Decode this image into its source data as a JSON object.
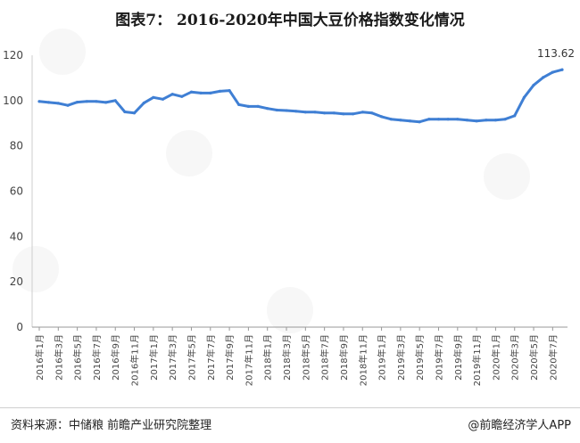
{
  "chart_data": {
    "type": "line",
    "title": "图表7：  2016-2020年中国大豆价格指数变化情况",
    "ylim": [
      0,
      120
    ],
    "yticks": [
      0,
      20,
      40,
      60,
      80,
      100,
      120
    ],
    "grid": false,
    "tick_labels": [
      "2016年1月",
      "2016年3月",
      "2016年5月",
      "2016年7月",
      "2016年9月",
      "2016年11月",
      "2017年1月",
      "2017年3月",
      "2017年5月",
      "2017年7月",
      "2017年9月",
      "2017年11月",
      "2018年1月",
      "2018年3月",
      "2018年5月",
      "2018年7月",
      "2018年9月",
      "2018年11月",
      "2019年1月",
      "2019年3月",
      "2019年5月",
      "2019年7月",
      "2019年9月",
      "2019年11月",
      "2020年1月",
      "2020年3月",
      "2020年5月",
      "2020年7月"
    ],
    "x": [
      "2016年1月",
      "2016年2月",
      "2016年3月",
      "2016年4月",
      "2016年5月",
      "2016年6月",
      "2016年7月",
      "2016年8月",
      "2016年9月",
      "2016年10月",
      "2016年11月",
      "2016年12月",
      "2017年1月",
      "2017年2月",
      "2017年3月",
      "2017年4月",
      "2017年5月",
      "2017年6月",
      "2017年7月",
      "2017年8月",
      "2017年9月",
      "2017年10月",
      "2017年11月",
      "2017年12月",
      "2018年1月",
      "2018年2月",
      "2018年3月",
      "2018年4月",
      "2018年5月",
      "2018年6月",
      "2018年7月",
      "2018年8月",
      "2018年9月",
      "2018年10月",
      "2018年11月",
      "2018年12月",
      "2019年1月",
      "2019年2月",
      "2019年3月",
      "2019年4月",
      "2019年5月",
      "2019年6月",
      "2019年7月",
      "2019年8月",
      "2019年9月",
      "2019年10月",
      "2019年11月",
      "2019年12月",
      "2020年1月",
      "2020年2月",
      "2020年3月",
      "2020年4月",
      "2020年5月",
      "2020年6月",
      "2020年7月",
      "2020年8月"
    ],
    "series": [
      {
        "color": "#3f7fd4",
        "values": [
          99.6,
          99.2,
          98.8,
          97.9,
          99.3,
          99.6,
          99.6,
          99.2,
          100.0,
          95.0,
          94.5,
          98.9,
          101.4,
          100.6,
          102.8,
          101.8,
          103.8,
          103.3,
          103.3,
          104.1,
          104.4,
          98.2,
          97.4,
          97.4,
          96.5,
          95.8,
          95.6,
          95.3,
          94.9,
          94.9,
          94.5,
          94.5,
          94.1,
          94.1,
          94.9,
          94.5,
          92.9,
          91.8,
          91.4,
          91.0,
          90.6,
          91.8,
          91.8,
          91.8,
          91.8,
          91.4,
          91.0,
          91.4,
          91.4,
          91.8,
          93.3,
          101.4,
          106.8,
          110.2,
          112.5,
          113.62
        ]
      }
    ],
    "annotations": [
      {
        "x": "2020年8月",
        "label": "113.62"
      }
    ]
  },
  "footer": {
    "source": "资料来源：中储粮 前瞻产业研究院整理",
    "brand": "@前瞻经济学人APP"
  }
}
